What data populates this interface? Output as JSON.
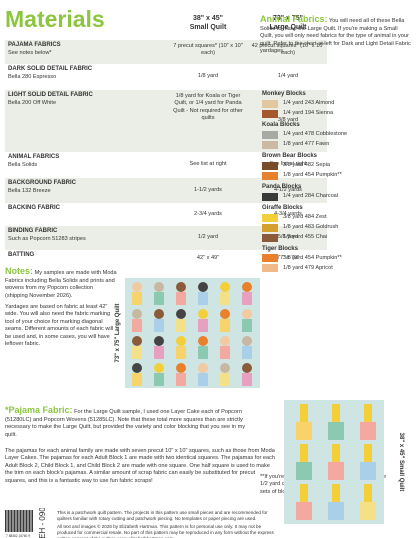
{
  "header": {
    "title": "Materials"
  },
  "table": {
    "columns": [
      {
        "size": "38\" x 45\"",
        "label": "Small Quilt"
      },
      {
        "size": "73\" x 75\"",
        "label": "Large Quilt"
      }
    ],
    "rows": [
      [
        "PAJAMA FABRICS",
        "See notes below*",
        "7 precut squares* (10\" x 10\" each)",
        "42 precut squares* (10\" x 10\" each)"
      ],
      [
        "DARK SOLID DETAIL FABRIC",
        "Bella 280 Espresso",
        "1/8 yard",
        "1/4 yard"
      ],
      [
        "LIGHT SOLID DETAIL FABRIC",
        "Bella 200 Off White",
        "1/8 yard for Koala or Tiger Quilt, or 1/4 yard for Panda Quilt - Not required for other quilts",
        "3/8 yard"
      ],
      [
        "ANIMAL FABRICS",
        "Bella Solids",
        "See list at right",
        "See list at right"
      ],
      [
        "BACKGROUND FABRIC",
        "Bella 132 Breeze",
        "1-1/2 yards",
        "4-1/2 yards"
      ],
      [
        "BACKING FABRIC",
        null,
        "2-3/4 yards",
        "4-3/4 yards"
      ],
      [
        "BINDING FABRIC",
        "Such as Popcorn 51283 stripes",
        "1/2 yard",
        "5/8 yard"
      ],
      [
        "BATTING",
        null,
        "42\" x 49\"",
        "77\" x 79\""
      ]
    ]
  },
  "animal_fabrics": {
    "heading": "Animal Fabrics:",
    "text": "You will need all of these Bella Solids to make the Large Quilt. If you're making a Small Quilt, you will only need fabrics for the type of animal in your quilt. Refer to the chart at left for Dark and Light Detail Fabric yardages.",
    "blocks": [
      {
        "name": "Monkey Blocks",
        "items": [
          {
            "text": "1/4 yard 243 Almond",
            "color": "#e3c7a0"
          },
          {
            "text": "1/4 yard 194 Sienna",
            "color": "#a4582c"
          }
        ]
      },
      {
        "name": "Koala Blocks",
        "items": [
          {
            "text": "1/4 yard 478 Cobblestone",
            "color": "#a9a9a3"
          },
          {
            "text": "1/8 yard 477 Fawn",
            "color": "#c9b9a5"
          }
        ]
      },
      {
        "name": "Brown Bear Blocks",
        "items": [
          {
            "text": "3/8 yard 482 Sepia",
            "color": "#7a4b2b"
          },
          {
            "text": "1/8 yard 454 Pumpkin**",
            "color": "#e9802b"
          }
        ]
      },
      {
        "name": "Panda Blocks",
        "items": [
          {
            "text": "1/4 yard 284 Charcoal",
            "color": "#3a3a3a"
          }
        ]
      },
      {
        "name": "Giraffe Blocks",
        "items": [
          {
            "text": "3/8 yard 484 Zest",
            "color": "#f3cf3a"
          },
          {
            "text": "1/8 yard 483 Goldrush",
            "color": "#d6a02d"
          },
          {
            "text": "1/8 yard 455 Chai",
            "color": "#8a5a3a"
          }
        ]
      },
      {
        "name": "Tiger Blocks",
        "items": [
          {
            "text": "3/8 yard 454 Pumpkin**",
            "color": "#e9802b"
          },
          {
            "text": "1/8 yard 479 Apricot",
            "color": "#f2b98a"
          }
        ]
      }
    ],
    "note": "**If you're making the Large Quilt, you can use one 1/2 yard cut of Bella 454 Pumpkin to make both sets of blocks."
  },
  "notes": {
    "heading": "Notes:",
    "paragraphs": [
      "My samples are made with Moda Fabrics including Bella Solids and prints and wovens from my Popcorn collection (shipping November 2026).",
      "Yardages are based on fabric at least 42\" wide. You will also need the fabric marking tool of your choice for marking diagonal seams. Different amounts of each fabric will be used and, in some cases, you will have leftover fabric."
    ]
  },
  "pajama": {
    "heading": "*Pajama Fabric:",
    "text": "For the Large Quilt sample, I used one Layer Cake each of Popcorn (51280LC) and Popcorn Wovens (51285LC). Note that these total more squares than are strictly necessary to make the Large Quilt, but provided the variety and color blocking that you see in my quilt.",
    "paragraph": "The pajamas for each animal family are made with seven precut 10\" x 10\" squares, such as those from Moda Layer Cakes. The pajamas for each Adult Block 1 are made with two identical squares. The pajamas for each Adult Block 2, Child Block 1, and Child Block 2 are made with one square. One half square is used to make the trim on each block's pajamas. A similar amount of scrap fabric can easily be substituted for precut squares, and this is a fantastic way to use fun fabric scraps!"
  },
  "quilt_labels": {
    "large": "73\" x 75\" Large Quilt",
    "small": "38\" x 45\" Small Quilt"
  },
  "footer": {
    "code": "EH - 090",
    "barcode": "7 88362 15760 9",
    "text": [
      "This is a patchwork quilt pattern. The projects in this pattern use small pieces and are recommended for quilters familiar with rotary cutting and patchwork piecing. No templates or paper piecing are used.",
      "All text and images © 2026 by Elizabeth Hartman. This pattern is for personal use only. It may not be produced for commercial resale. No part of this pattern may be reproduced in any form without the express written consent of the author. www.elizabethhartman.com"
    ]
  }
}
